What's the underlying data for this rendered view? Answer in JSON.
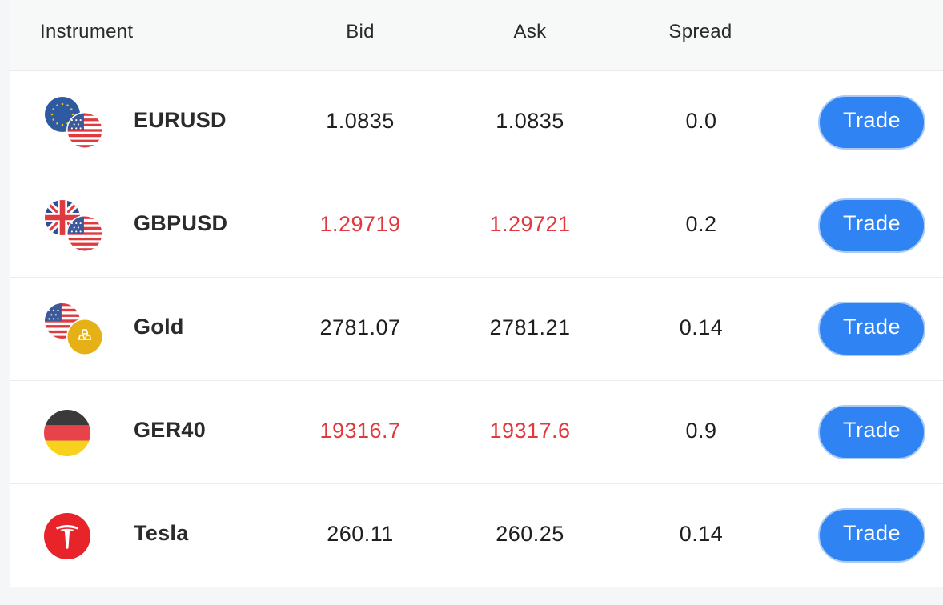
{
  "header": {
    "instrument": "Instrument",
    "bid": "Bid",
    "ask": "Ask",
    "spread": "Spread"
  },
  "colors": {
    "accent": "#2f83f2",
    "price_down": "#e0393e"
  },
  "rows": [
    {
      "name": "EURUSD",
      "bid": "1.0835",
      "ask": "1.0835",
      "spread": "0.0",
      "trade_label": "Trade",
      "icon": "eur-usd-flags-icon",
      "price_color": "normal"
    },
    {
      "name": "GBPUSD",
      "bid": "1.29719",
      "ask": "1.29721",
      "spread": "0.2",
      "trade_label": "Trade",
      "icon": "gbp-usd-flags-icon",
      "price_color": "red"
    },
    {
      "name": "Gold",
      "bid": "2781.07",
      "ask": "2781.21",
      "spread": "0.14",
      "trade_label": "Trade",
      "icon": "usd-gold-icon",
      "price_color": "normal"
    },
    {
      "name": "GER40",
      "bid": "19316.7",
      "ask": "19317.6",
      "spread": "0.9",
      "trade_label": "Trade",
      "icon": "germany-flag-icon",
      "price_color": "red"
    },
    {
      "name": "Tesla",
      "bid": "260.11",
      "ask": "260.25",
      "spread": "0.14",
      "trade_label": "Trade",
      "icon": "tesla-logo-icon",
      "price_color": "normal"
    }
  ]
}
